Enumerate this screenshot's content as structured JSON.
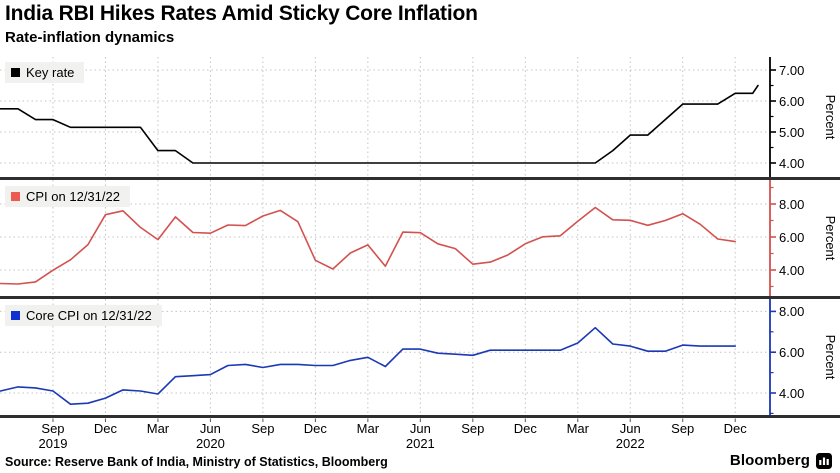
{
  "header": {
    "title": "India RBI Hikes Rates Amid Sticky Core Inflation",
    "subtitle": "Rate-inflation dynamics"
  },
  "source_line": "Source: Reserve Bank of India, Ministry of Statistics, Bloomberg",
  "branding": {
    "label": "Bloomberg"
  },
  "colors": {
    "grid": "#c4c4c4",
    "separator": "#2e2e2e",
    "x_tick": "#555555",
    "text": "#000000",
    "legend_bg": "#f1f1f0"
  },
  "x_axis": {
    "ticks": [
      {
        "i": 3,
        "label": "Sep",
        "year": "2019"
      },
      {
        "i": 6,
        "label": "Dec"
      },
      {
        "i": 9,
        "label": "Mar"
      },
      {
        "i": 12,
        "label": "Jun",
        "year": "2020"
      },
      {
        "i": 15,
        "label": "Sep"
      },
      {
        "i": 18,
        "label": "Dec"
      },
      {
        "i": 21,
        "label": "Mar"
      },
      {
        "i": 24,
        "label": "Jun",
        "year": "2021"
      },
      {
        "i": 27,
        "label": "Sep"
      },
      {
        "i": 30,
        "label": "Dec"
      },
      {
        "i": 33,
        "label": "Mar"
      },
      {
        "i": 36,
        "label": "Jun",
        "year": "2022"
      },
      {
        "i": 39,
        "label": "Sep"
      },
      {
        "i": 42,
        "label": "Dec"
      }
    ],
    "start": "2019-06",
    "frequency": "monthly"
  },
  "chart_data": [
    {
      "type": "line",
      "legend": "Key rate",
      "ylabel": "Percent",
      "color": "#000000",
      "swatch_color": "#000000",
      "yticks": [
        "7.00",
        "6.00",
        "5.00",
        "4.00"
      ],
      "minor_ticks": [
        6.5,
        5.5,
        4.5
      ],
      "ylim": [
        3.6,
        7.4
      ],
      "x_start": "2019-06",
      "values": [
        5.75,
        5.75,
        5.4,
        5.4,
        5.15,
        5.15,
        5.15,
        5.15,
        5.15,
        4.4,
        4.4,
        4.0,
        4.0,
        4.0,
        4.0,
        4.0,
        4.0,
        4.0,
        4.0,
        4.0,
        4.0,
        4.0,
        4.0,
        4.0,
        4.0,
        4.0,
        4.0,
        4.0,
        4.0,
        4.0,
        4.0,
        4.0,
        4.0,
        4.0,
        4.0,
        4.4,
        4.9,
        4.9,
        5.4,
        5.9,
        5.9,
        5.9,
        6.25,
        6.25,
        6.5
      ]
    },
    {
      "type": "line",
      "legend": "CPI on 12/31/22",
      "ylabel": "Percent",
      "color": "#d2524f",
      "swatch_color": "#ec5a52",
      "yticks": [
        "8.00",
        "6.00",
        "4.00"
      ],
      "minor_ticks": [
        9,
        7,
        5,
        3
      ],
      "ylim": [
        2.5,
        9.0
      ],
      "x_start": "2019-06",
      "values": [
        3.18,
        3.15,
        3.28,
        3.99,
        4.62,
        5.54,
        7.35,
        7.59,
        6.58,
        5.84,
        7.22,
        6.27,
        6.23,
        6.73,
        6.69,
        7.27,
        7.61,
        6.93,
        4.59,
        4.06,
        5.03,
        5.52,
        4.23,
        6.3,
        6.26,
        5.59,
        5.3,
        4.35,
        4.48,
        4.91,
        5.59,
        6.01,
        6.07,
        6.95,
        7.79,
        7.04,
        7.01,
        6.71,
        7.0,
        7.41,
        6.77,
        5.88,
        5.72
      ]
    },
    {
      "type": "line",
      "legend": "Core CPI on 12/31/22",
      "ylabel": "Percent",
      "color": "#1a39b5",
      "swatch_color": "#0f2fd0",
      "yticks": [
        "8.00",
        "6.00",
        "4.00"
      ],
      "minor_ticks": [
        7,
        5,
        3
      ],
      "ylim": [
        2.9,
        8.6
      ],
      "x_start": "2019-06",
      "values": [
        4.1,
        4.3,
        4.25,
        4.1,
        3.45,
        3.5,
        3.75,
        4.15,
        4.1,
        3.95,
        4.8,
        4.85,
        4.9,
        5.35,
        5.4,
        5.25,
        5.4,
        5.4,
        5.35,
        5.35,
        5.6,
        5.75,
        5.3,
        6.15,
        6.15,
        5.95,
        5.9,
        5.85,
        6.1,
        6.1,
        6.1,
        6.1,
        6.1,
        6.45,
        7.2,
        6.4,
        6.3,
        6.05,
        6.05,
        6.35,
        6.3,
        6.3,
        6.3
      ]
    }
  ]
}
